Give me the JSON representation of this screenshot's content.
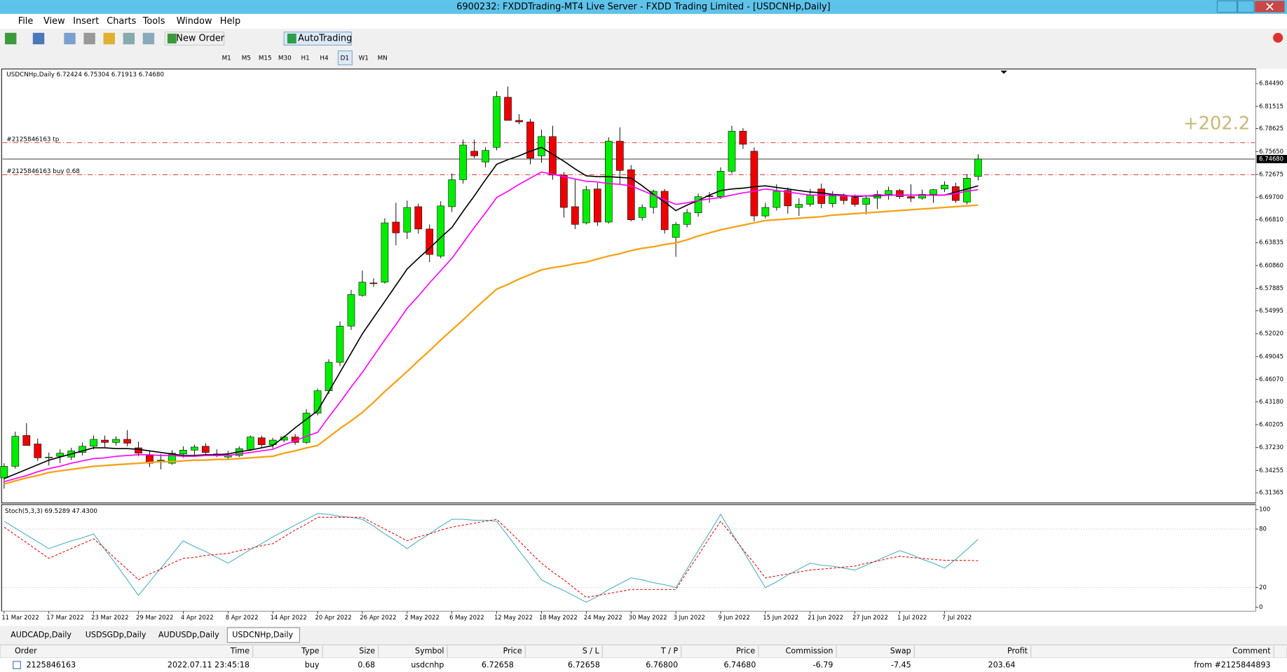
{
  "window": {
    "title": "6900232: FXDDTrading-MT4 Live Server - FXDD Trading Limited - [USDCNHp,Daily]",
    "menu": [
      "File",
      "View",
      "Insert",
      "Charts",
      "Tools",
      "Window",
      "Help"
    ],
    "toolbar": [
      "New Order",
      "AutoTrading"
    ],
    "timeframes": [
      "M1",
      "M5",
      "M15",
      "M30",
      "H1",
      "H4",
      "D1",
      "W1",
      "MN"
    ],
    "tabs": [
      "AUDCADp,Daily",
      "USDSGDp,Daily",
      "AUDUSDp,Daily",
      "USDCNHp,Daily"
    ]
  },
  "chart_data": {
    "type": "candlestick",
    "header_label": "USDCNHp,Daily  6.72424 6.75304 6.71913 6.74680",
    "categories": [
      "11 Mar 2022",
      null,
      null,
      null,
      "17 Mar 2022",
      null,
      null,
      null,
      "23 Mar 2022",
      null,
      null,
      null,
      "29 Mar 2022",
      null,
      null,
      null,
      "4 Apr 2022",
      null,
      null,
      null,
      "8 Apr 2022",
      null,
      null,
      null,
      "14 Apr 2022",
      null,
      null,
      null,
      "20 Apr 2022",
      null,
      null,
      null,
      "26 Apr 2022",
      null,
      null,
      null,
      "2 May 2022",
      null,
      null,
      null,
      "6 May 2022",
      null,
      null,
      null,
      "12 May 2022",
      null,
      null,
      null,
      "18 May 2022",
      null,
      null,
      null,
      "24 May 2022",
      null,
      null,
      null,
      "30 May 2022",
      null,
      null,
      null,
      "3 Jun 2022",
      null,
      null,
      null,
      "9 Jun 2022",
      null,
      null,
      null,
      "15 Jun 2022",
      null,
      null,
      null,
      "21 Jun 2022",
      null,
      null,
      null,
      "27 Jun 2022",
      null,
      null,
      null,
      "1 Jul 2022",
      null,
      null,
      null,
      "7 Jul 2022",
      null,
      null,
      null
    ],
    "ohlc": [
      [
        6.333,
        6.352,
        6.319,
        6.348
      ],
      [
        6.348,
        6.393,
        6.345,
        6.387
      ],
      [
        6.388,
        6.404,
        6.378,
        6.375
      ],
      [
        6.377,
        6.384,
        6.355,
        6.359
      ],
      [
        6.359,
        6.366,
        6.349,
        6.36
      ],
      [
        6.361,
        6.37,
        6.352,
        6.365
      ],
      [
        6.36,
        6.372,
        6.356,
        6.368
      ],
      [
        6.366,
        6.379,
        6.362,
        6.374
      ],
      [
        6.374,
        6.388,
        6.37,
        6.383
      ],
      [
        6.382,
        6.388,
        6.373,
        6.379
      ],
      [
        6.379,
        6.387,
        6.375,
        6.383
      ],
      [
        6.383,
        6.395,
        6.374,
        6.378
      ],
      [
        6.372,
        6.38,
        6.361,
        6.365
      ],
      [
        6.362,
        6.368,
        6.347,
        6.352
      ],
      [
        6.356,
        6.364,
        6.344,
        6.356
      ],
      [
        6.352,
        6.369,
        6.35,
        6.365
      ],
      [
        6.364,
        6.374,
        6.359,
        6.369
      ],
      [
        6.369,
        6.376,
        6.362,
        6.373
      ],
      [
        6.374,
        6.378,
        6.362,
        6.366
      ],
      [
        6.364,
        6.37,
        6.36,
        6.362
      ],
      [
        6.36,
        6.368,
        6.358,
        6.362
      ],
      [
        6.362,
        6.374,
        6.36,
        6.371
      ],
      [
        6.37,
        6.388,
        6.368,
        6.386
      ],
      [
        6.385,
        6.388,
        6.373,
        6.376
      ],
      [
        6.376,
        6.385,
        6.371,
        6.382
      ],
      [
        6.382,
        6.388,
        6.379,
        6.386
      ],
      [
        6.386,
        6.39,
        6.376,
        6.379
      ],
      [
        6.379,
        6.422,
        6.377,
        6.417
      ],
      [
        6.417,
        6.449,
        6.414,
        6.446
      ],
      [
        6.446,
        6.487,
        6.442,
        6.483
      ],
      [
        6.483,
        6.536,
        6.478,
        6.53
      ],
      [
        6.53,
        6.577,
        6.525,
        6.571
      ],
      [
        6.57,
        6.602,
        6.568,
        6.587
      ],
      [
        6.586,
        6.592,
        6.581,
        6.585
      ],
      [
        6.587,
        6.67,
        6.585,
        6.664
      ],
      [
        6.665,
        6.69,
        6.635,
        6.651
      ],
      [
        6.652,
        6.693,
        6.643,
        6.684
      ],
      [
        6.685,
        6.689,
        6.65,
        6.656
      ],
      [
        6.656,
        6.662,
        6.613,
        6.623
      ],
      [
        6.621,
        6.692,
        6.618,
        6.686
      ],
      [
        6.685,
        6.728,
        6.678,
        6.72
      ],
      [
        6.72,
        6.772,
        6.715,
        6.765
      ],
      [
        6.757,
        6.772,
        6.748,
        6.751
      ],
      [
        6.743,
        6.762,
        6.736,
        6.758
      ],
      [
        6.762,
        6.835,
        6.758,
        6.828
      ],
      [
        6.827,
        6.841,
        6.801,
        6.797
      ],
      [
        6.797,
        6.805,
        6.792,
        6.795
      ],
      [
        6.795,
        6.799,
        6.74,
        6.748
      ],
      [
        6.751,
        6.785,
        6.742,
        6.776
      ],
      [
        6.776,
        6.79,
        6.72,
        6.726
      ],
      [
        6.726,
        6.73,
        6.671,
        6.684
      ],
      [
        6.685,
        6.72,
        6.656,
        6.662
      ],
      [
        6.664,
        6.712,
        6.662,
        6.707
      ],
      [
        6.708,
        6.716,
        6.66,
        6.665
      ],
      [
        6.665,
        6.775,
        6.663,
        6.77
      ],
      [
        6.77,
        6.788,
        6.714,
        6.732
      ],
      [
        6.733,
        6.739,
        6.666,
        6.668
      ],
      [
        6.671,
        6.688,
        6.667,
        6.684
      ],
      [
        6.684,
        6.707,
        6.676,
        6.705
      ],
      [
        6.705,
        6.708,
        6.65,
        6.655
      ],
      [
        6.645,
        6.665,
        6.62,
        6.662
      ],
      [
        6.662,
        6.682,
        6.658,
        6.677
      ],
      [
        6.677,
        6.702,
        6.672,
        6.698
      ],
      [
        6.699,
        6.704,
        6.69,
        6.698
      ],
      [
        6.698,
        6.736,
        6.695,
        6.731
      ],
      [
        6.731,
        6.79,
        6.728,
        6.783
      ],
      [
        6.783,
        6.787,
        6.76,
        6.766
      ],
      [
        6.757,
        6.762,
        6.666,
        6.673
      ],
      [
        6.673,
        6.69,
        6.67,
        6.684
      ],
      [
        6.684,
        6.714,
        6.68,
        6.705
      ],
      [
        6.706,
        6.71,
        6.676,
        6.686
      ],
      [
        6.684,
        6.696,
        6.673,
        6.688
      ],
      [
        6.688,
        6.708,
        6.685,
        6.7
      ],
      [
        6.708,
        6.715,
        6.683,
        6.689
      ],
      [
        6.689,
        6.705,
        6.684,
        6.699
      ],
      [
        6.699,
        6.702,
        6.688,
        6.693
      ],
      [
        6.697,
        6.701,
        6.685,
        6.688
      ],
      [
        6.688,
        6.699,
        6.675,
        6.696
      ],
      [
        6.696,
        6.706,
        6.682,
        6.701
      ],
      [
        6.701,
        6.711,
        6.694,
        6.706
      ],
      [
        6.706,
        6.708,
        6.695,
        6.698
      ],
      [
        6.698,
        6.714,
        6.691,
        6.696
      ],
      [
        6.696,
        6.707,
        6.694,
        6.701
      ],
      [
        6.701,
        6.708,
        6.69,
        6.707
      ],
      [
        6.708,
        6.718,
        6.704,
        6.713
      ],
      [
        6.711,
        6.716,
        6.69,
        6.693
      ],
      [
        6.691,
        6.727,
        6.688,
        6.722
      ],
      [
        6.72424,
        6.75304,
        6.71913,
        6.7468
      ]
    ],
    "bull_color": "#00ee00",
    "bear_color": "#ee0000",
    "ylim": [
      6.3004,
      6.8638
    ],
    "yticks": [
      {
        "value": 6.8449,
        "label": "6.84490"
      },
      6.81515,
      6.78625,
      {
        "value": 6.7565,
        "label": "6.75650"
      },
      6.72675,
      {
        "value": 6.697,
        "label": "6.69700"
      },
      {
        "value": 6.6681,
        "label": "6.66810"
      },
      6.63835,
      {
        "value": 6.6086,
        "label": "6.60860"
      },
      6.57885,
      6.54995,
      {
        "value": 6.5202,
        "label": "6.52020"
      },
      6.49045,
      {
        "value": 6.4607,
        "label": "6.46070"
      },
      {
        "value": 6.4318,
        "label": "6.43180"
      },
      6.40205,
      {
        "value": 6.3723,
        "label": "6.37230"
      },
      6.34255,
      6.31365
    ],
    "current_price": {
      "value": 6.7468,
      "label": "6.74680"
    },
    "orders": [
      {
        "label": "#2125846163 tp",
        "price": 6.768
      },
      {
        "label": "#2125846163 buy 0.68",
        "price": 6.72658
      }
    ],
    "profit_label": "+202.2",
    "moving_averages": [
      {
        "color": "#000000",
        "values": [
          6.332,
          6.338,
          6.344,
          6.35,
          6.356,
          6.36,
          6.364,
          6.368,
          6.372,
          6.372,
          6.371,
          6.371,
          6.37,
          6.368,
          6.366,
          6.364,
          6.362,
          6.362,
          6.363,
          6.363,
          6.364,
          6.367,
          6.369,
          6.372,
          6.375,
          6.386,
          6.398,
          6.409,
          6.42,
          6.445,
          6.47,
          6.495,
          6.52,
          6.541,
          6.562,
          6.583,
          6.604,
          6.618,
          6.631,
          6.645,
          6.658,
          6.679,
          6.699,
          6.72,
          6.74,
          6.746,
          6.751,
          6.757,
          6.762,
          6.753,
          6.744,
          6.734,
          6.725,
          6.724,
          6.724,
          6.723,
          6.722,
          6.712,
          6.701,
          6.691,
          6.68,
          6.687,
          6.693,
          6.7,
          6.706,
          6.708,
          6.709,
          6.711,
          6.712,
          6.71,
          6.708,
          6.706,
          6.704,
          6.703,
          6.701,
          6.7,
          6.698,
          6.699,
          6.699,
          6.7,
          6.7,
          6.7,
          6.7,
          6.7,
          6.7,
          6.704,
          6.708,
          6.712
        ]
      },
      {
        "color": "#ff00ff",
        "values": [
          6.328,
          6.332,
          6.336,
          6.341,
          6.345,
          6.348,
          6.352,
          6.355,
          6.358,
          6.359,
          6.361,
          6.362,
          6.363,
          6.363,
          6.362,
          6.362,
          6.361,
          6.361,
          6.362,
          6.362,
          6.362,
          6.364,
          6.366,
          6.368,
          6.37,
          6.376,
          6.381,
          6.387,
          6.392,
          6.412,
          6.431,
          6.451,
          6.47,
          6.491,
          6.512,
          6.532,
          6.553,
          6.569,
          6.586,
          6.602,
          6.618,
          6.638,
          6.658,
          6.677,
          6.697,
          6.705,
          6.714,
          6.722,
          6.73,
          6.727,
          6.724,
          6.721,
          6.718,
          6.717,
          6.715,
          6.714,
          6.712,
          6.706,
          6.7,
          6.694,
          6.688,
          6.69,
          6.693,
          6.695,
          6.697,
          6.7,
          6.703,
          6.705,
          6.708,
          6.706,
          6.704,
          6.702,
          6.7,
          6.7,
          6.7,
          6.699,
          6.699,
          6.699,
          6.7,
          6.7,
          6.7,
          6.7,
          6.7,
          6.7,
          6.7,
          6.702,
          6.705,
          6.707
        ]
      },
      {
        "color": "#f5a31a",
        "values": [
          6.325,
          6.329,
          6.333,
          6.336,
          6.34,
          6.342,
          6.344,
          6.346,
          6.348,
          6.349,
          6.35,
          6.351,
          6.352,
          6.353,
          6.354,
          6.354,
          6.355,
          6.356,
          6.356,
          6.357,
          6.357,
          6.358,
          6.359,
          6.36,
          6.361,
          6.365,
          6.368,
          6.372,
          6.375,
          6.386,
          6.397,
          6.407,
          6.418,
          6.431,
          6.445,
          6.458,
          6.471,
          6.485,
          6.498,
          6.512,
          6.525,
          6.538,
          6.552,
          6.565,
          6.578,
          6.584,
          6.591,
          6.597,
          6.603,
          6.606,
          6.608,
          6.611,
          6.613,
          6.617,
          6.621,
          6.624,
          6.628,
          6.631,
          6.633,
          6.636,
          6.638,
          6.642,
          6.647,
          6.651,
          6.655,
          6.658,
          6.661,
          6.664,
          6.667,
          6.668,
          6.669,
          6.67,
          6.671,
          6.672,
          6.674,
          6.675,
          6.676,
          6.677,
          6.678,
          6.679,
          6.68,
          6.681,
          6.682,
          6.683,
          6.684,
          6.685,
          6.686,
          6.687
        ]
      }
    ],
    "stochastic": {
      "label": "Stoch(5,3,3) 69.5289 47.4300",
      "ylim": [
        -3.4,
        104.2
      ],
      "yticks": [
        100,
        80,
        20,
        0
      ],
      "levels": [
        80,
        20
      ],
      "series": [
        {
          "color": "#5ab4c4",
          "style": "solid",
          "values": [
            88,
            81,
            74,
            67,
            60,
            64,
            68,
            71,
            75,
            59,
            44,
            28,
            12,
            26,
            40,
            54,
            68,
            62,
            57,
            51,
            45,
            52,
            59,
            65,
            72,
            78,
            84,
            90,
            96,
            95,
            93,
            92,
            90,
            83,
            75,
            68,
            60,
            68,
            75,
            83,
            90,
            90,
            89,
            89,
            88,
            73,
            58,
            43,
            28,
            22,
            17,
            11,
            5,
            11,
            18,
            24,
            30,
            28,
            25,
            23,
            20,
            39,
            58,
            76,
            95,
            76,
            58,
            39,
            20,
            26,
            33,
            39,
            45,
            43,
            42,
            40,
            38,
            43,
            48,
            53,
            58,
            54,
            49,
            45,
            40,
            49,
            59,
            69.5289
          ]
        },
        {
          "color": "#e02020",
          "style": "dashed",
          "values": [
            82,
            74,
            66,
            58,
            50,
            55,
            60,
            65,
            70,
            60,
            49,
            39,
            28,
            34,
            39,
            45,
            50,
            51,
            53,
            54,
            55,
            58,
            60,
            63,
            65,
            72,
            79,
            85,
            92,
            92,
            92,
            92,
            92,
            86,
            80,
            74,
            68,
            72,
            75,
            79,
            82,
            84,
            86,
            88,
            90,
            79,
            68,
            56,
            45,
            36,
            28,
            19,
            10,
            12,
            14,
            16,
            18,
            18,
            18,
            18,
            18,
            36,
            53,
            71,
            88,
            74,
            59,
            45,
            30,
            32,
            34,
            36,
            38,
            39,
            40,
            41,
            42,
            45,
            47,
            50,
            52,
            51,
            50,
            49,
            48,
            48,
            48,
            47.43
          ]
        }
      ]
    }
  },
  "trade_table": {
    "columns": [
      "Order",
      "Time",
      "Type",
      "Size",
      "Symbol",
      "Price",
      "S / L",
      "T / P",
      "Price",
      "Commission",
      "Swap",
      "Profit",
      "Comment"
    ],
    "rows": [
      [
        "2125846163",
        "2022.07.11 23:45:18",
        "buy",
        "0.68",
        "usdcnhp",
        "6.72658",
        "6.72658",
        "6.76800",
        "6.74680",
        "-6.79",
        "-7.45",
        "203.64",
        "from #2125844893"
      ]
    ]
  }
}
